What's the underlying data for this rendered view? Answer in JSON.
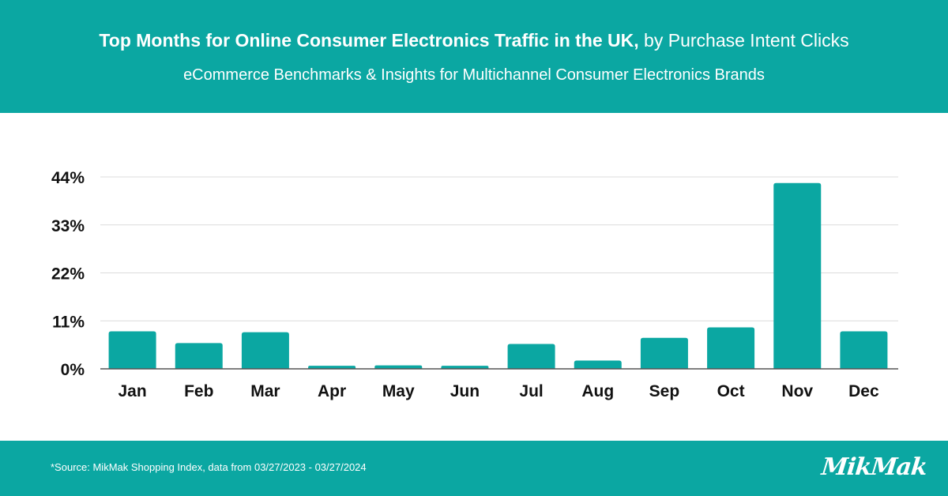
{
  "header": {
    "title_bold": "Top Months for Online Consumer Electronics Traffic in the UK,",
    "title_rest": " by Purchase Intent Clicks",
    "subtitle": "eCommerce Benchmarks & Insights for Multichannel Consumer Electronics Brands",
    "background": "#0ba7a2"
  },
  "chart_data": {
    "type": "bar",
    "categories": [
      "Jan",
      "Feb",
      "Mar",
      "Apr",
      "May",
      "Jun",
      "Jul",
      "Aug",
      "Sep",
      "Oct",
      "Nov",
      "Dec"
    ],
    "values": [
      8.6,
      5.9,
      8.4,
      0.7,
      0.8,
      0.7,
      5.7,
      1.9,
      7.1,
      9.5,
      42.6,
      8.6
    ],
    "y_ticks": [
      "0%",
      "11%",
      "22%",
      "33%",
      "44%"
    ],
    "y_tick_values": [
      0,
      11,
      22,
      33,
      44
    ],
    "ylim": [
      0,
      44
    ],
    "title": "",
    "xlabel": "",
    "ylabel": "",
    "bar_color": "#0ba7a2",
    "grid": true,
    "legend": "none"
  },
  "footer": {
    "source": "*Source: MikMak Shopping Index, data from  03/27/2023 - 03/27/2024",
    "logo": "MikMak"
  }
}
